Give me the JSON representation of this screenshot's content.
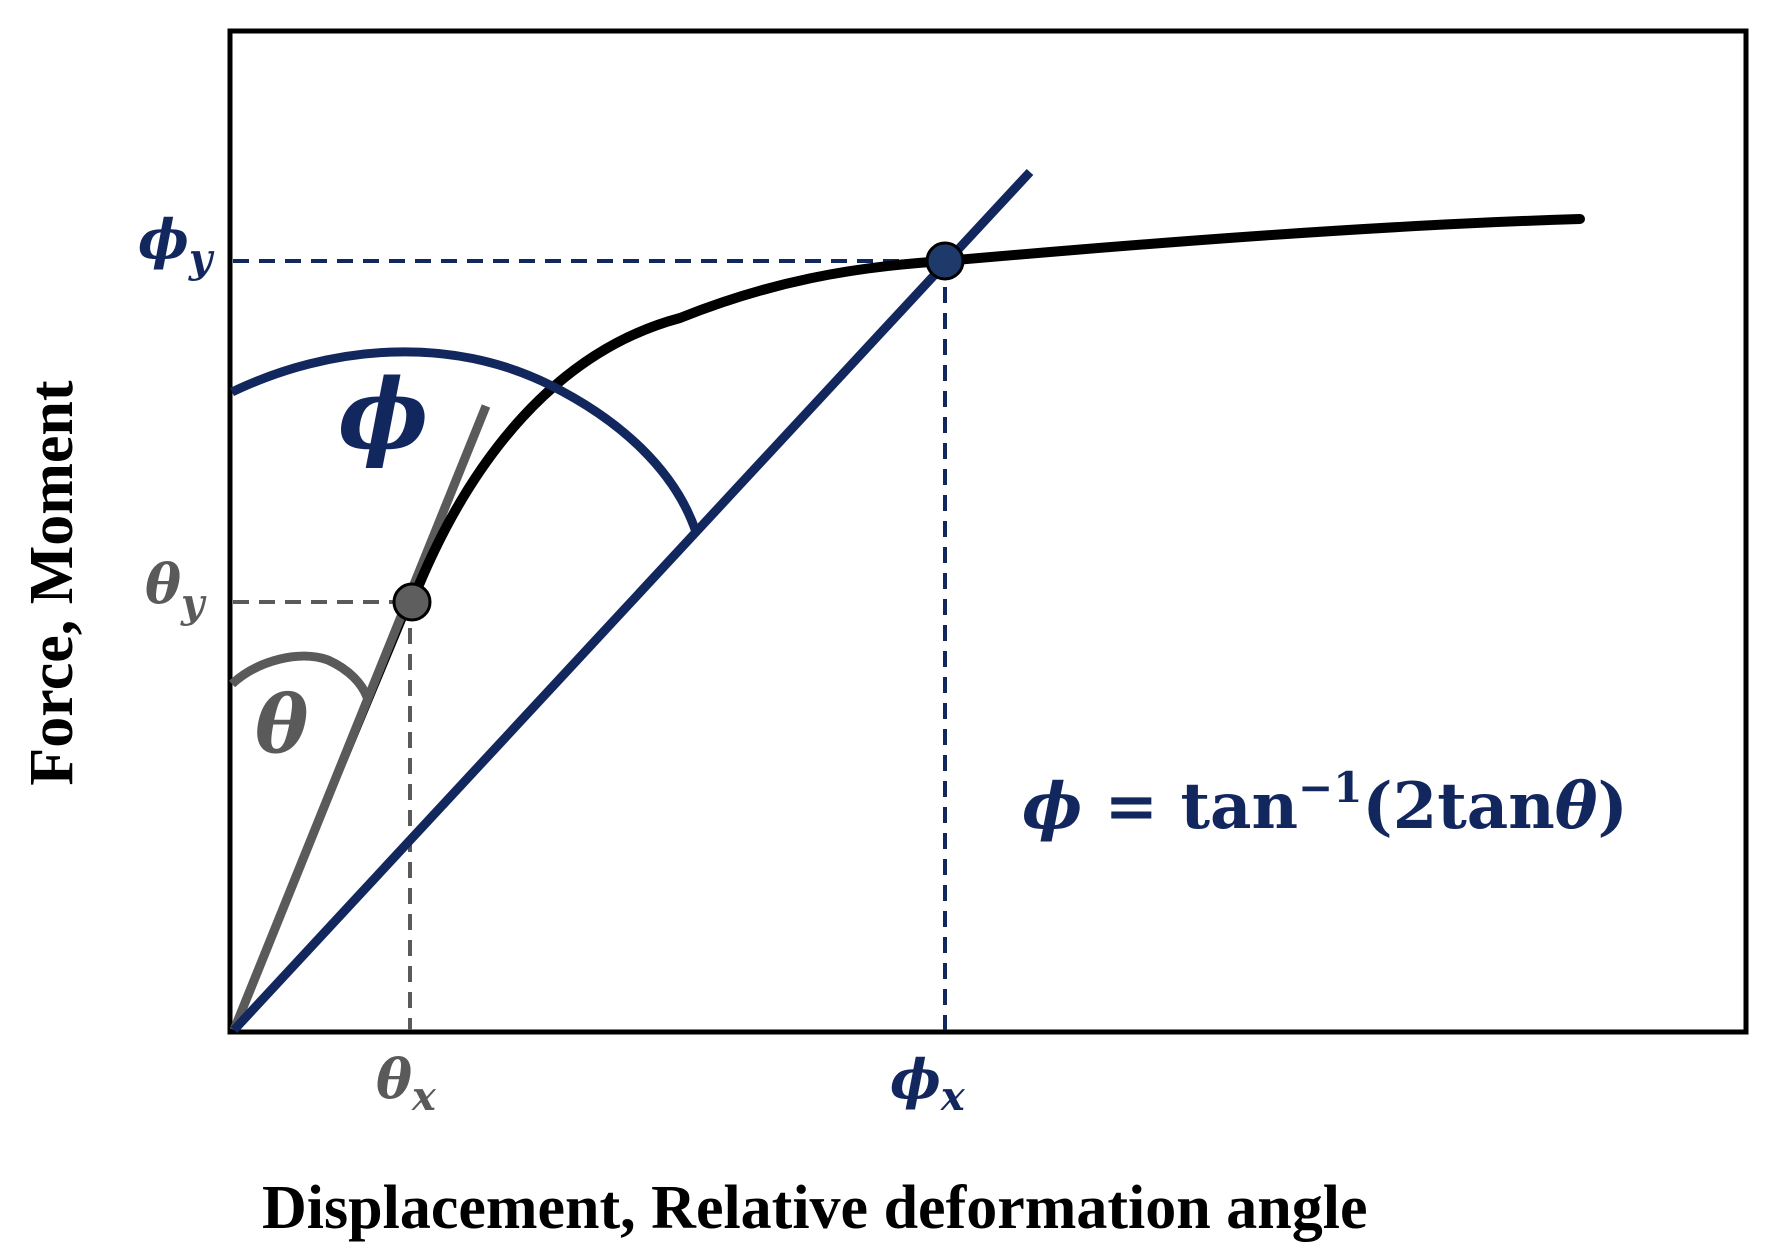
{
  "axes": {
    "x_title": "Displacement, Relative deformation angle",
    "y_title": "Force, Moment"
  },
  "labels": {
    "phi_y": {
      "main": "ϕ",
      "sub": "y"
    },
    "theta_y": {
      "main": "θ",
      "sub": "y"
    },
    "theta_x": {
      "main": "θ",
      "sub": "x"
    },
    "phi_x": {
      "main": "ϕ",
      "sub": "x"
    },
    "phi_angle": "ϕ",
    "theta_angle": "θ"
  },
  "formula": {
    "lhs": "ϕ",
    "eq": " = tan",
    "sup": "−1",
    "rhs_open": "(2tan",
    "rhs_theta": "θ",
    "rhs_close": ")"
  },
  "colors": {
    "navy": "#12275e",
    "gray": "#5a5a5a",
    "black": "#000000",
    "point_navy_fill": "#1e3a6b",
    "point_gray_fill": "#5e5e5e"
  }
}
